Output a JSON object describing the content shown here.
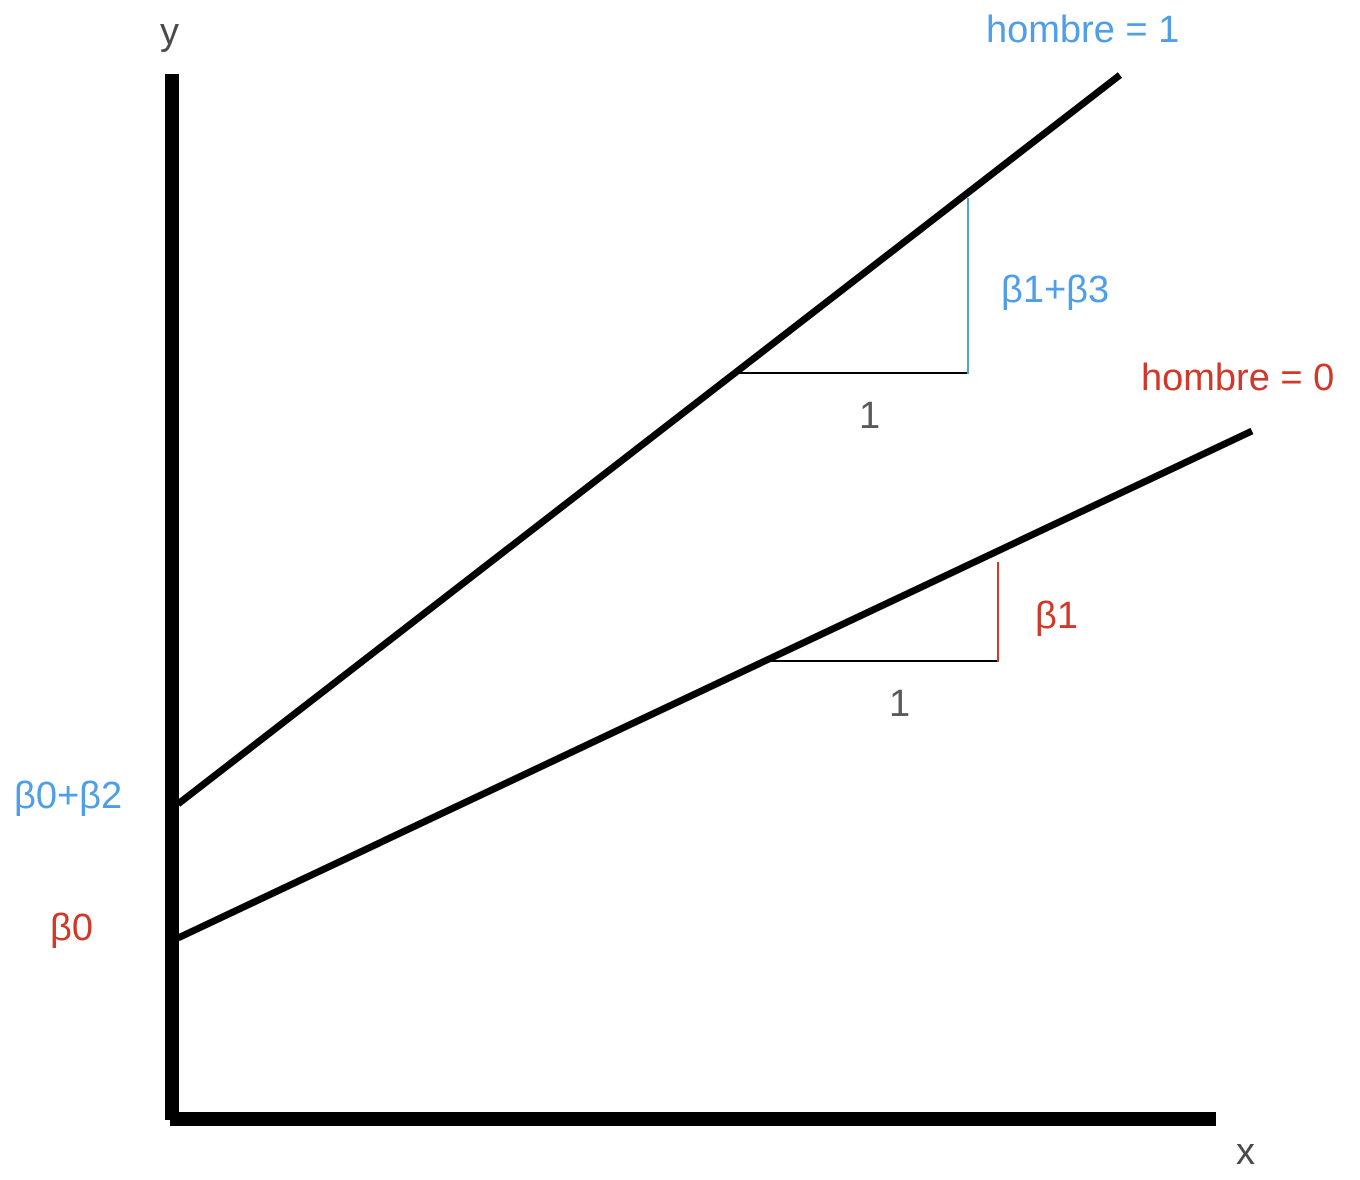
{
  "colors": {
    "axis": "#000000",
    "group_hombre_1": "#4f9ee8",
    "group_hombre_0": "#d0392a",
    "text_gray": "#4a4a4a"
  },
  "axes": {
    "y_label": "y",
    "x_label": "x"
  },
  "lines": {
    "hombre_1": {
      "label": "hombre = 1",
      "intercept_label": "β0+β2",
      "slope_label": "β1+β3",
      "run_label": "1"
    },
    "hombre_0": {
      "label": "hombre = 0",
      "intercept_label": "β0",
      "slope_label": "β1",
      "run_label": "1"
    }
  }
}
